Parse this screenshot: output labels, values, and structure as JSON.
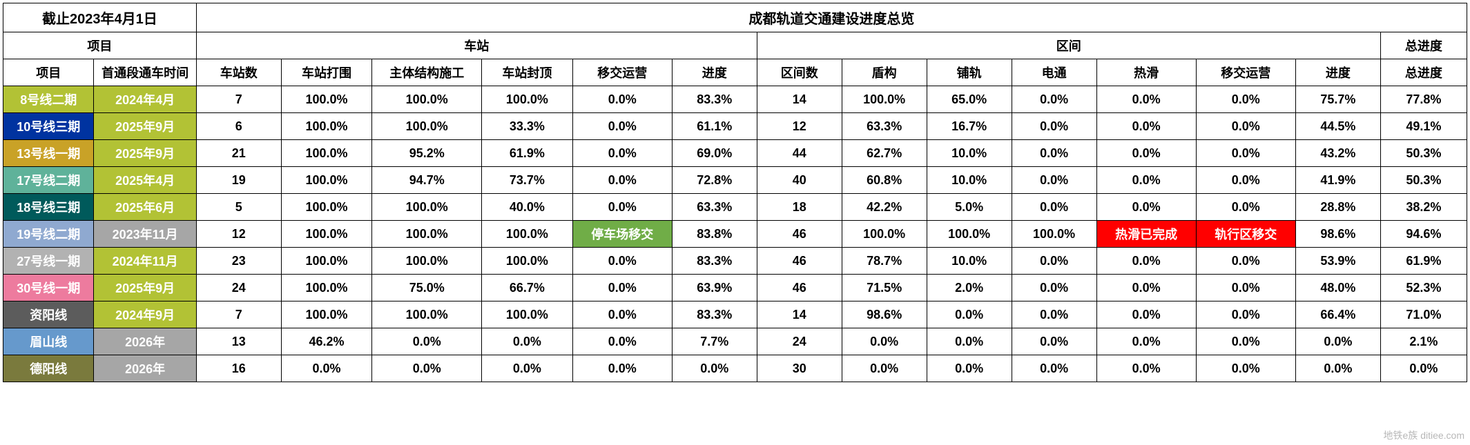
{
  "header": {
    "date_label": "截止2023年4月1日",
    "main_title": "成都轨道交通建设进度总览",
    "group_project": "项目",
    "group_station": "车站",
    "group_section": "区间",
    "group_total": "总进度",
    "col_project": "项目",
    "col_open_date": "首通段通车时间",
    "col_station_count": "车站数",
    "col_station_enclosure": "车站打围",
    "col_main_structure": "主体结构施工",
    "col_station_cap": "车站封顶",
    "col_station_handover": "移交运营",
    "col_station_progress": "进度",
    "col_section_count": "区间数",
    "col_shield": "盾构",
    "col_track": "铺轨",
    "col_power": "电通",
    "col_hotslide": "热滑",
    "col_section_handover": "移交运营",
    "col_section_progress": "进度",
    "col_total_progress": "总进度"
  },
  "colors": {
    "line8_2": "#b2c235",
    "line10_3": "#0033a0",
    "line13_1": "#c9a227",
    "line17_2": "#5fb29a",
    "line18_3": "#005a5b",
    "line19_2": "#8fa9d0",
    "line27_1": "#b2b2b2",
    "line30_1": "#ed7b9e",
    "ziyang": "#5c5c5c",
    "meishan": "#6699cc",
    "deyang": "#7a7a3d",
    "open_green": "#b2c235",
    "open_grey": "#a6a6a6",
    "special_green": "#70ad47",
    "special_red": "#ff0000"
  },
  "rows": [
    {
      "name": "8号线二期",
      "name_bg": "#b2c235",
      "open": "2024年4月",
      "open_bg": "#b2c235",
      "sc": "7",
      "se": "100.0%",
      "ms": "100.0%",
      "cap": "100.0%",
      "sh": "0.0%",
      "sp": "83.3%",
      "secc": "14",
      "shield": "100.0%",
      "track": "65.0%",
      "power": "0.0%",
      "hot": "0.0%",
      "sech": "0.0%",
      "secp": "75.7%",
      "total": "77.8%"
    },
    {
      "name": "10号线三期",
      "name_bg": "#0033a0",
      "open": "2025年9月",
      "open_bg": "#b2c235",
      "sc": "6",
      "se": "100.0%",
      "ms": "100.0%",
      "cap": "33.3%",
      "sh": "0.0%",
      "sp": "61.1%",
      "secc": "12",
      "shield": "63.3%",
      "track": "16.7%",
      "power": "0.0%",
      "hot": "0.0%",
      "sech": "0.0%",
      "secp": "44.5%",
      "total": "49.1%"
    },
    {
      "name": "13号线一期",
      "name_bg": "#c9a227",
      "open": "2025年9月",
      "open_bg": "#b2c235",
      "sc": "21",
      "se": "100.0%",
      "ms": "95.2%",
      "cap": "61.9%",
      "sh": "0.0%",
      "sp": "69.0%",
      "secc": "44",
      "shield": "62.7%",
      "track": "10.0%",
      "power": "0.0%",
      "hot": "0.0%",
      "sech": "0.0%",
      "secp": "43.2%",
      "total": "50.3%"
    },
    {
      "name": "17号线二期",
      "name_bg": "#5fb29a",
      "open": "2025年4月",
      "open_bg": "#b2c235",
      "sc": "19",
      "se": "100.0%",
      "ms": "94.7%",
      "cap": "73.7%",
      "sh": "0.0%",
      "sp": "72.8%",
      "secc": "40",
      "shield": "60.8%",
      "track": "10.0%",
      "power": "0.0%",
      "hot": "0.0%",
      "sech": "0.0%",
      "secp": "41.9%",
      "total": "50.3%"
    },
    {
      "name": "18号线三期",
      "name_bg": "#005a5b",
      "open": "2025年6月",
      "open_bg": "#b2c235",
      "sc": "5",
      "se": "100.0%",
      "ms": "100.0%",
      "cap": "40.0%",
      "sh": "0.0%",
      "sp": "63.3%",
      "secc": "18",
      "shield": "42.2%",
      "track": "5.0%",
      "power": "0.0%",
      "hot": "0.0%",
      "sech": "0.0%",
      "secp": "28.8%",
      "total": "38.2%"
    },
    {
      "name": "19号线二期",
      "name_bg": "#8fa9d0",
      "open": "2023年11月",
      "open_bg": "#a6a6a6",
      "sc": "12",
      "se": "100.0%",
      "ms": "100.0%",
      "cap": "100.0%",
      "sh": "停车场移交",
      "sh_class": "special-green",
      "sp": "83.8%",
      "secc": "46",
      "shield": "100.0%",
      "track": "100.0%",
      "power": "100.0%",
      "hot": "热滑已完成",
      "hot_class": "special-red",
      "sech": "轨行区移交",
      "sech_class": "special-red",
      "secp": "98.6%",
      "total": "94.6%"
    },
    {
      "name": "27号线一期",
      "name_bg": "#b2b2b2",
      "open": "2024年11月",
      "open_bg": "#b2c235",
      "sc": "23",
      "se": "100.0%",
      "ms": "100.0%",
      "cap": "100.0%",
      "sh": "0.0%",
      "sp": "83.3%",
      "secc": "46",
      "shield": "78.7%",
      "track": "10.0%",
      "power": "0.0%",
      "hot": "0.0%",
      "sech": "0.0%",
      "secp": "53.9%",
      "total": "61.9%"
    },
    {
      "name": "30号线一期",
      "name_bg": "#ed7b9e",
      "open": "2025年9月",
      "open_bg": "#b2c235",
      "sc": "24",
      "se": "100.0%",
      "ms": "75.0%",
      "cap": "66.7%",
      "sh": "0.0%",
      "sp": "63.9%",
      "secc": "46",
      "shield": "71.5%",
      "track": "2.0%",
      "power": "0.0%",
      "hot": "0.0%",
      "sech": "0.0%",
      "secp": "48.0%",
      "total": "52.3%"
    },
    {
      "name": "资阳线",
      "name_bg": "#5c5c5c",
      "open": "2024年9月",
      "open_bg": "#b2c235",
      "sc": "7",
      "se": "100.0%",
      "ms": "100.0%",
      "cap": "100.0%",
      "sh": "0.0%",
      "sp": "83.3%",
      "secc": "14",
      "shield": "98.6%",
      "track": "0.0%",
      "power": "0.0%",
      "hot": "0.0%",
      "sech": "0.0%",
      "secp": "66.4%",
      "total": "71.0%"
    },
    {
      "name": "眉山线",
      "name_bg": "#6699cc",
      "open": "2026年",
      "open_bg": "#a6a6a6",
      "sc": "13",
      "se": "46.2%",
      "ms": "0.0%",
      "cap": "0.0%",
      "sh": "0.0%",
      "sp": "7.7%",
      "secc": "24",
      "shield": "0.0%",
      "track": "0.0%",
      "power": "0.0%",
      "hot": "0.0%",
      "sech": "0.0%",
      "secp": "0.0%",
      "total": "2.1%"
    },
    {
      "name": "德阳线",
      "name_bg": "#7a7a3d",
      "open": "2026年",
      "open_bg": "#a6a6a6",
      "sc": "16",
      "se": "0.0%",
      "ms": "0.0%",
      "cap": "0.0%",
      "sh": "0.0%",
      "sp": "0.0%",
      "secc": "30",
      "shield": "0.0%",
      "track": "0.0%",
      "power": "0.0%",
      "hot": "0.0%",
      "sech": "0.0%",
      "secp": "0.0%",
      "total": "0.0%"
    }
  ],
  "watermark": "地铁e族\nditiee.com"
}
